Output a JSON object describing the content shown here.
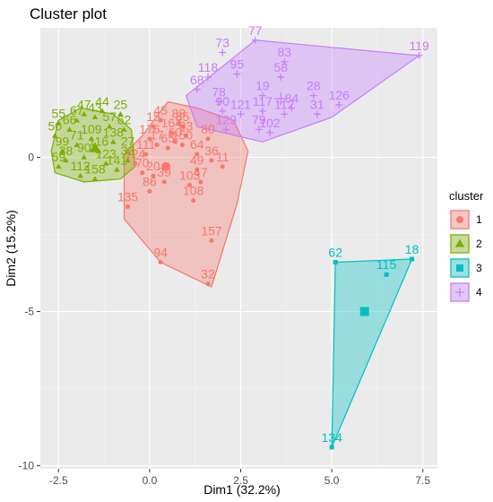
{
  "chart_data": {
    "type": "scatter",
    "title": "Cluster plot",
    "xlabel": "Dim1 (32.2%)",
    "ylabel": "Dim2 (15.2%)",
    "xlim": [
      -3.0,
      7.9
    ],
    "ylim": [
      -10.1,
      4.2
    ],
    "xticks": [
      -2.5,
      0.0,
      2.5,
      5.0,
      7.5
    ],
    "xtick_labels": [
      "-2.5",
      "0.0",
      "2.5",
      "5.0",
      "7.5"
    ],
    "yticks": [
      0,
      -5,
      -10
    ],
    "ytick_labels": [
      "0",
      "-5",
      "-10"
    ],
    "grid": true,
    "legend": {
      "title": "cluster",
      "placement": "right"
    },
    "series": [
      {
        "name": "1",
        "color": "#F8766D",
        "marker": "circle",
        "hull": [
          [
            -0.7,
            0.1
          ],
          [
            -0.2,
            0.7
          ],
          [
            0.5,
            1.8
          ],
          [
            1.3,
            1.6
          ],
          [
            2.3,
            1.2
          ],
          [
            2.7,
            0.2
          ],
          [
            2.4,
            -1.5
          ],
          [
            1.7,
            -4.2
          ],
          [
            0.3,
            -3.4
          ],
          [
            -0.7,
            -2.0
          ]
        ],
        "centroid": [
          0.45,
          -0.3
        ],
        "points": [
          {
            "x": 0.3,
            "y": 1.2,
            "label": "45"
          },
          {
            "x": 0.1,
            "y": 1.0,
            "label": "15"
          },
          {
            "x": 0.0,
            "y": 0.6,
            "label": "176"
          },
          {
            "x": 0.8,
            "y": 1.1,
            "label": "88"
          },
          {
            "x": 0.9,
            "y": 1.0,
            "label": "85"
          },
          {
            "x": 1.0,
            "y": 0.7,
            "label": "93"
          },
          {
            "x": 0.7,
            "y": 0.5,
            "label": "60"
          },
          {
            "x": 0.5,
            "y": 0.3,
            "label": "65"
          },
          {
            "x": 0.2,
            "y": 0.4,
            "label": "17"
          },
          {
            "x": 1.6,
            "y": 0.6,
            "label": "80"
          },
          {
            "x": 1.7,
            "y": -0.1,
            "label": "36"
          },
          {
            "x": 2.0,
            "y": -0.3,
            "label": "11"
          },
          {
            "x": 1.3,
            "y": 0.1,
            "label": "64"
          },
          {
            "x": 1.3,
            "y": -0.4,
            "label": "49"
          },
          {
            "x": 1.4,
            "y": -0.8,
            "label": "47"
          },
          {
            "x": 1.1,
            "y": -0.9,
            "label": "103"
          },
          {
            "x": 1.2,
            "y": -1.4,
            "label": "108"
          },
          {
            "x": 0.4,
            "y": -0.8,
            "label": "39"
          },
          {
            "x": 0.0,
            "y": -1.1,
            "label": "86"
          },
          {
            "x": -0.6,
            "y": -1.6,
            "label": "135"
          },
          {
            "x": 0.3,
            "y": -3.4,
            "label": "94"
          },
          {
            "x": 1.7,
            "y": -2.7,
            "label": "157"
          },
          {
            "x": 1.6,
            "y": -4.1,
            "label": "32"
          },
          {
            "x": -0.4,
            "y": -0.2,
            "label": "124"
          },
          {
            "x": -0.2,
            "y": -0.5,
            "label": "70"
          },
          {
            "x": 0.1,
            "y": -0.6,
            "label": "20"
          },
          {
            "x": -0.1,
            "y": 0.1,
            "label": "111"
          },
          {
            "x": 0.6,
            "y": 0.8,
            "label": "164"
          },
          {
            "x": 0.9,
            "y": 0.4,
            "label": "150"
          }
        ]
      },
      {
        "name": "2",
        "color": "#7CAE00",
        "marker": "triangle",
        "hull": [
          [
            -2.7,
            0.2
          ],
          [
            -2.5,
            1.2
          ],
          [
            -1.9,
            1.6
          ],
          [
            -1.0,
            1.4
          ],
          [
            -0.5,
            0.9
          ],
          [
            -0.4,
            -0.3
          ],
          [
            -0.8,
            -0.7
          ],
          [
            -1.8,
            -0.8
          ],
          [
            -2.6,
            -0.5
          ]
        ],
        "centroid": [
          -1.5,
          0.3
        ],
        "points": [
          {
            "x": -2.5,
            "y": 1.1,
            "label": "55"
          },
          {
            "x": -2.6,
            "y": 0.7,
            "label": "50"
          },
          {
            "x": -2.4,
            "y": 0.2,
            "label": "99"
          },
          {
            "x": -2.2,
            "y": 0.9,
            "label": "66"
          },
          {
            "x": -2.0,
            "y": 1.2,
            "label": "67"
          },
          {
            "x": -1.8,
            "y": 1.4,
            "label": "47"
          },
          {
            "x": -1.5,
            "y": 1.3,
            "label": "43"
          },
          {
            "x": -1.3,
            "y": 1.5,
            "label": "44"
          },
          {
            "x": -0.8,
            "y": 1.4,
            "label": "25"
          },
          {
            "x": -1.1,
            "y": 1.0,
            "label": "57"
          },
          {
            "x": -0.7,
            "y": 0.9,
            "label": "62"
          },
          {
            "x": -2.3,
            "y": -0.1,
            "label": "38"
          },
          {
            "x": -2.0,
            "y": 0.4,
            "label": "71"
          },
          {
            "x": -1.8,
            "y": 0.0,
            "label": "90"
          },
          {
            "x": -1.6,
            "y": 0.6,
            "label": "109"
          },
          {
            "x": -1.4,
            "y": 0.2,
            "label": "116"
          },
          {
            "x": -1.2,
            "y": -0.2,
            "label": "123"
          },
          {
            "x": -1.0,
            "y": 0.5,
            "label": "138"
          },
          {
            "x": -0.9,
            "y": -0.4,
            "label": "141"
          },
          {
            "x": -0.6,
            "y": 0.2,
            "label": "27"
          },
          {
            "x": -2.5,
            "y": -0.3,
            "label": "59"
          },
          {
            "x": -1.9,
            "y": -0.6,
            "label": "112"
          },
          {
            "x": -1.5,
            "y": -0.7,
            "label": "158"
          },
          {
            "x": -0.6,
            "y": -0.1,
            "label": "33"
          }
        ]
      },
      {
        "name": "3",
        "color": "#00BFC4",
        "marker": "square",
        "hull": [
          [
            5.1,
            -3.4
          ],
          [
            7.2,
            -3.3
          ],
          [
            5.0,
            -9.4
          ]
        ],
        "centroid": [
          5.9,
          -5.0
        ],
        "points": [
          {
            "x": 5.1,
            "y": -3.4,
            "label": "62"
          },
          {
            "x": 7.2,
            "y": -3.3,
            "label": "18"
          },
          {
            "x": 6.5,
            "y": -3.8,
            "label": "115"
          },
          {
            "x": 5.0,
            "y": -9.4,
            "label": "134"
          }
        ]
      },
      {
        "name": "4",
        "color": "#C77CFF",
        "marker": "plus",
        "hull": [
          [
            1.0,
            2.0
          ],
          [
            2.9,
            3.8
          ],
          [
            7.4,
            3.3
          ],
          [
            5.0,
            1.3
          ],
          [
            3.1,
            0.5
          ],
          [
            1.3,
            1.0
          ]
        ],
        "centroid": [
          3.6,
          1.9
        ],
        "points": [
          {
            "x": 2.9,
            "y": 3.8,
            "label": "77"
          },
          {
            "x": 7.4,
            "y": 3.3,
            "label": "119"
          },
          {
            "x": 2.0,
            "y": 3.4,
            "label": "73"
          },
          {
            "x": 3.7,
            "y": 3.1,
            "label": "83"
          },
          {
            "x": 2.4,
            "y": 2.7,
            "label": "95"
          },
          {
            "x": 1.6,
            "y": 2.6,
            "label": "118"
          },
          {
            "x": 3.6,
            "y": 2.6,
            "label": "58"
          },
          {
            "x": 1.3,
            "y": 2.2,
            "label": "68"
          },
          {
            "x": 3.1,
            "y": 2.0,
            "label": "19"
          },
          {
            "x": 4.5,
            "y": 2.0,
            "label": "28"
          },
          {
            "x": 1.9,
            "y": 1.8,
            "label": "78"
          },
          {
            "x": 2.0,
            "y": 1.5,
            "label": "90"
          },
          {
            "x": 2.5,
            "y": 1.4,
            "label": "121"
          },
          {
            "x": 3.1,
            "y": 1.5,
            "label": "117"
          },
          {
            "x": 3.7,
            "y": 1.4,
            "label": "112"
          },
          {
            "x": 3.9,
            "y": 1.6,
            "label": "84"
          },
          {
            "x": 5.2,
            "y": 1.7,
            "label": "126"
          },
          {
            "x": 4.6,
            "y": 1.4,
            "label": "31"
          },
          {
            "x": 2.1,
            "y": 0.9,
            "label": "129"
          },
          {
            "x": 3.0,
            "y": 0.9,
            "label": "79"
          },
          {
            "x": 3.3,
            "y": 0.8,
            "label": "102"
          }
        ]
      }
    ]
  }
}
